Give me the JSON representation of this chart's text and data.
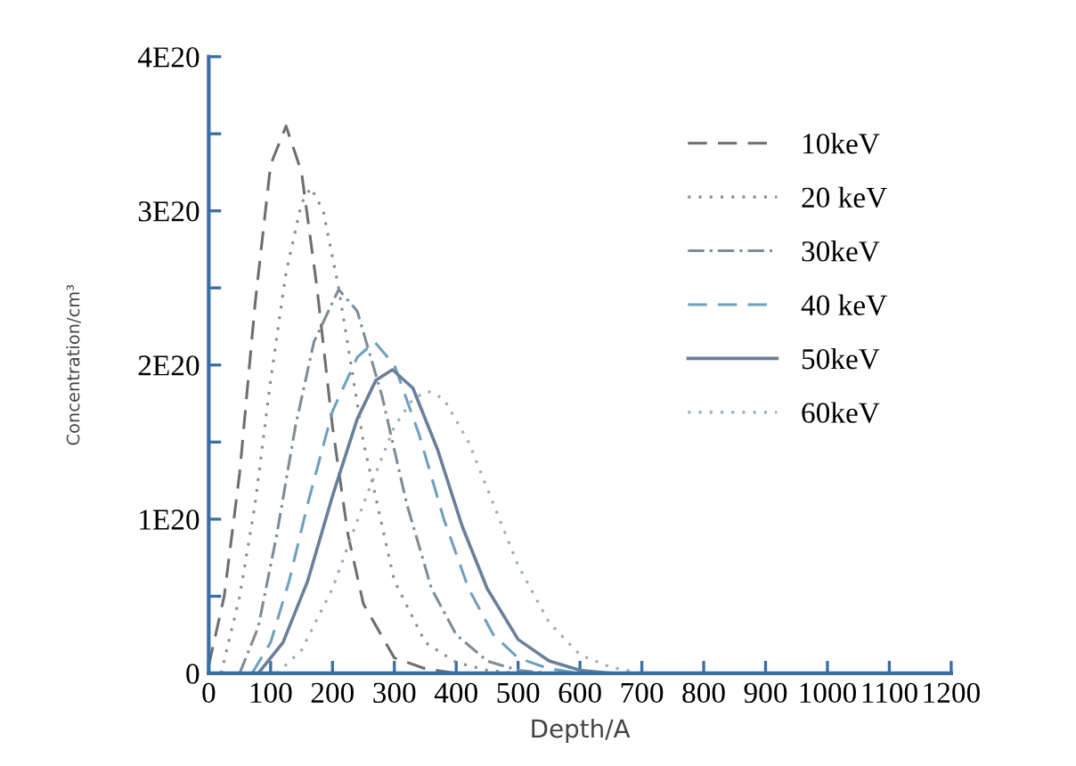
{
  "chart_data": {
    "type": "line",
    "xlabel": "Depth/A",
    "ylabel": "Concentration/cm³",
    "xlim": [
      0,
      1200
    ],
    "xticks": [
      0,
      100,
      200,
      300,
      400,
      500,
      600,
      700,
      800,
      900,
      1000,
      1100,
      1200
    ],
    "ylim": [
      0,
      4e+20
    ],
    "yticks": [
      {
        "value": 0,
        "label": "0"
      },
      {
        "value": 5e+19,
        "label": null
      },
      {
        "value": 1e+20,
        "label": "1E20"
      },
      {
        "value": 1.5e+20,
        "label": null
      },
      {
        "value": 2e+20,
        "label": "2E20"
      },
      {
        "value": 2.5e+20,
        "label": null
      },
      {
        "value": 3e+20,
        "label": "3E20"
      },
      {
        "value": 3.5e+20,
        "label": null
      },
      {
        "value": 4e+20,
        "label": "4E20"
      }
    ],
    "grid": false,
    "legend": "top right",
    "marker": "none",
    "series": [
      {
        "name": "10keV",
        "color": "#6e6e6e",
        "line_style": "dashed",
        "x": [
          0,
          25,
          50,
          75,
          100,
          125,
          150,
          175,
          200,
          225,
          250,
          300,
          350,
          400
        ],
        "values": [
          5e+18,
          5e+19,
          1.3e+20,
          2.4e+20,
          3.3e+20,
          3.55e+20,
          3.25e+20,
          2.5e+20,
          1.6e+20,
          9e+19,
          4.5e+19,
          1e+19,
          3e+18,
          0
        ]
      },
      {
        "name": "20 keV",
        "color": "#8a8a8a",
        "line_style": "dotted",
        "x": [
          20,
          50,
          75,
          100,
          125,
          150,
          165,
          185,
          210,
          250,
          300,
          350,
          400,
          450,
          500
        ],
        "values": [
          0,
          5e+19,
          1.1e+20,
          1.9e+20,
          2.6e+20,
          3.05e+20,
          3.15e+20,
          3e+20,
          2.5e+20,
          1.5e+20,
          6e+19,
          2e+19,
          7e+18,
          2e+18,
          0
        ]
      },
      {
        "name": "30keV",
        "color": "#7d8c96",
        "line_style": "dashdot",
        "x": [
          50,
          80,
          110,
          140,
          170,
          210,
          240,
          280,
          320,
          360,
          400,
          450,
          500,
          550
        ],
        "values": [
          0,
          3e+19,
          9e+19,
          1.6e+20,
          2.15e+20,
          2.49e+20,
          2.35e+20,
          1.8e+20,
          1.1e+20,
          5.5e+19,
          2.5e+19,
          8e+18,
          2e+18,
          0
        ]
      },
      {
        "name": "40 keV",
        "color": "#6f9fbf",
        "line_style": "dashed",
        "x": [
          70,
          100,
          130,
          160,
          200,
          240,
          268,
          300,
          340,
          380,
          420,
          460,
          500,
          550,
          600
        ],
        "values": [
          0,
          2e+19,
          6e+19,
          1.1e+20,
          1.7e+20,
          2.05e+20,
          2.15e+20,
          2e+20,
          1.55e+20,
          1e+20,
          5.5e+19,
          2.5e+19,
          1e+19,
          3e+18,
          0
        ]
      },
      {
        "name": "50keV",
        "color": "#6a7f9a",
        "line_style": "solid",
        "x": [
          80,
          120,
          160,
          200,
          240,
          270,
          297,
          330,
          370,
          410,
          450,
          500,
          550,
          600,
          650
        ],
        "values": [
          0,
          2e+19,
          6e+19,
          1.15e+20,
          1.65e+20,
          1.9e+20,
          1.97e+20,
          1.85e+20,
          1.45e+20,
          9.5e+19,
          5.5e+19,
          2.2e+19,
          8e+18,
          2e+18,
          0
        ]
      },
      {
        "name": "60keV",
        "color": "#9aa8b5",
        "line_style": "dotted",
        "x": [
          110,
          150,
          200,
          250,
          300,
          330,
          354,
          380,
          420,
          460,
          500,
          550,
          600,
          650,
          700
        ],
        "values": [
          0,
          1.5e+19,
          5.5e+19,
          1.1e+20,
          1.6e+20,
          1.78e+20,
          1.83e+20,
          1.78e+20,
          1.5e+20,
          1.1e+20,
          7e+19,
          3.3e+19,
          1.2e+19,
          4e+18,
          0
        ]
      }
    ]
  }
}
